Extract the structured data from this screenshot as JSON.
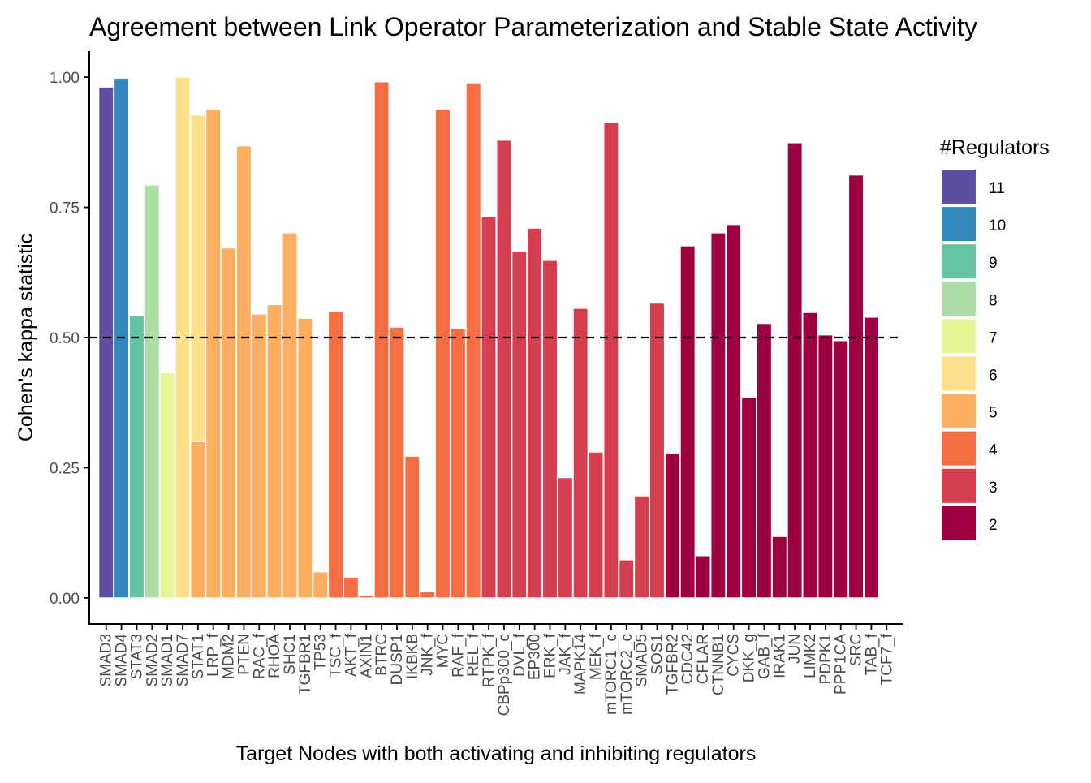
{
  "chart_data": {
    "type": "bar",
    "title": "Agreement between Link Operator Parameterization and Stable State Activity",
    "xlabel": "Target Nodes with both activating and inhibiting regulators",
    "ylabel": "Cohen's kappa statistic",
    "ylim": [
      -0.05,
      1.05
    ],
    "yticks": [
      0.0,
      0.25,
      0.5,
      0.75,
      1.0
    ],
    "ytick_labels": [
      "0.00",
      "0.25",
      "0.50",
      "0.75",
      "1.00"
    ],
    "reference_line": {
      "y": 0.5,
      "style": "dashed"
    },
    "grid": false,
    "legend": {
      "title": "#Regulators",
      "placement": "right",
      "items": [
        {
          "label": "11",
          "color": "#5E4FA2"
        },
        {
          "label": "10",
          "color": "#3288BD"
        },
        {
          "label": "9",
          "color": "#66C2A5"
        },
        {
          "label": "8",
          "color": "#ABDDA4"
        },
        {
          "label": "7",
          "color": "#E6F598"
        },
        {
          "label": "6",
          "color": "#FEE08B"
        },
        {
          "label": "5",
          "color": "#FDAE61"
        },
        {
          "label": "4",
          "color": "#F46D43"
        },
        {
          "label": "3",
          "color": "#D53E4F"
        },
        {
          "label": "2",
          "color": "#9E0142"
        }
      ]
    },
    "categories": [
      "SMAD3",
      "SMAD4",
      "STAT3",
      "SMAD2",
      "SMAD1",
      "SMAD7",
      "STAT1",
      "LRP_f",
      "MDM2",
      "PTEN",
      "RAC_f",
      "RHOA",
      "SHC1",
      "TGFBR1",
      "TP53",
      "TSC_f",
      "AKT_f",
      "AXIN1",
      "BTRC",
      "DUSP1",
      "IKBKB",
      "JNK_f",
      "MYC",
      "RAF_f",
      "REL_f",
      "RTPK_f",
      "CBPp300_c",
      "DVL_f",
      "EP300",
      "ERK_f",
      "JAK_f",
      "MAPK14",
      "MEK_f",
      "mTORC1_c",
      "mTORC2_c",
      "SMAD5",
      "SOS1",
      "TGFBR2",
      "CDC42",
      "CFLAR",
      "CTNNB1",
      "CYCS",
      "DKK_g",
      "GAB_f",
      "IRAK1",
      "JUN",
      "LIMK2",
      "PDPK1",
      "PPP1CA",
      "SRC",
      "TAB_f",
      "TCF7_f"
    ],
    "bars": [
      {
        "x": 1,
        "y": 0.981,
        "regulators": "11"
      },
      {
        "x": 2,
        "y": 0.998,
        "regulators": "10"
      },
      {
        "x": 3,
        "y": 0.543,
        "regulators": "9"
      },
      {
        "x": 4,
        "y": 0.793,
        "regulators": "8"
      },
      {
        "x": 5,
        "y": 0.432,
        "regulators": "7"
      },
      {
        "x": 6,
        "y": 1.0,
        "regulators": "6"
      },
      {
        "x": 7,
        "y": 0.927,
        "regulators": "6"
      },
      {
        "x": 7,
        "y": 0.3,
        "regulators": "5"
      },
      {
        "x": 8,
        "y": 0.938,
        "regulators": "5"
      },
      {
        "x": 9,
        "y": 0.672,
        "regulators": "5"
      },
      {
        "x": 10,
        "y": 0.868,
        "regulators": "5"
      },
      {
        "x": 11,
        "y": 0.545,
        "regulators": "5"
      },
      {
        "x": 12,
        "y": 0.563,
        "regulators": "5"
      },
      {
        "x": 13,
        "y": 0.701,
        "regulators": "5"
      },
      {
        "x": 14,
        "y": 0.537,
        "regulators": "5"
      },
      {
        "x": 15,
        "y": 0.05,
        "regulators": "5"
      },
      {
        "x": 16,
        "y": 0.551,
        "regulators": "4"
      },
      {
        "x": 17,
        "y": 0.04,
        "regulators": "4"
      },
      {
        "x": 18,
        "y": 0.005,
        "regulators": "4"
      },
      {
        "x": 19,
        "y": 0.991,
        "regulators": "4"
      },
      {
        "x": 20,
        "y": 0.52,
        "regulators": "4"
      },
      {
        "x": 21,
        "y": 0.272,
        "regulators": "4"
      },
      {
        "x": 22,
        "y": 0.012,
        "regulators": "4"
      },
      {
        "x": 23,
        "y": 0.938,
        "regulators": "4"
      },
      {
        "x": 24,
        "y": 0.518,
        "regulators": "4"
      },
      {
        "x": 25,
        "y": 0.989,
        "regulators": "4"
      },
      {
        "x": 26,
        "y": 0.732,
        "regulators": "3"
      },
      {
        "x": 27,
        "y": 0.879,
        "regulators": "3"
      },
      {
        "x": 28,
        "y": 0.666,
        "regulators": "3"
      },
      {
        "x": 29,
        "y": 0.71,
        "regulators": "3"
      },
      {
        "x": 30,
        "y": 0.648,
        "regulators": "3"
      },
      {
        "x": 31,
        "y": 0.231,
        "regulators": "3"
      },
      {
        "x": 32,
        "y": 0.556,
        "regulators": "3"
      },
      {
        "x": 33,
        "y": 0.28,
        "regulators": "3"
      },
      {
        "x": 34,
        "y": 0.913,
        "regulators": "3"
      },
      {
        "x": 35,
        "y": 0.073,
        "regulators": "3"
      },
      {
        "x": 36,
        "y": 0.196,
        "regulators": "3"
      },
      {
        "x": 37,
        "y": 0.566,
        "regulators": "3"
      },
      {
        "x": 38,
        "y": 0.278,
        "regulators": "2"
      },
      {
        "x": 39,
        "y": 0.676,
        "regulators": "2"
      },
      {
        "x": 40,
        "y": 0.081,
        "regulators": "2"
      },
      {
        "x": 41,
        "y": 0.701,
        "regulators": "2"
      },
      {
        "x": 42,
        "y": 0.717,
        "regulators": "2"
      },
      {
        "x": 43,
        "y": 0.385,
        "regulators": "2"
      },
      {
        "x": 44,
        "y": 0.527,
        "regulators": "2"
      },
      {
        "x": 45,
        "y": 0.118,
        "regulators": "2"
      },
      {
        "x": 46,
        "y": 0.874,
        "regulators": "2"
      },
      {
        "x": 47,
        "y": 0.548,
        "regulators": "2"
      },
      {
        "x": 48,
        "y": 0.505,
        "regulators": "2"
      },
      {
        "x": 49,
        "y": 0.494,
        "regulators": "2"
      },
      {
        "x": 50,
        "y": 0.812,
        "regulators": "2"
      },
      {
        "x": 51,
        "y": 0.539,
        "regulators": "2"
      }
    ]
  }
}
